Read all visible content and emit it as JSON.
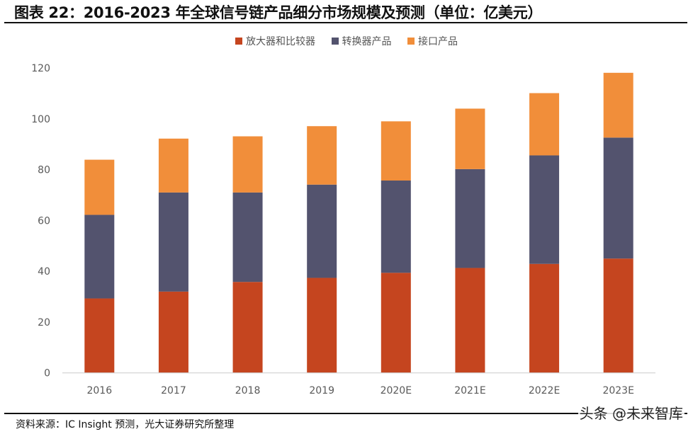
{
  "header": {
    "title": "图表 22：2016-2023 年全球信号链产品细分市场规模及预测（单位：亿美元）"
  },
  "footer": {
    "source": "资料来源：IC Insight 预测，光大证券研究所整理",
    "watermark": "头条 @未来智库"
  },
  "chart_data": {
    "type": "bar",
    "stacked": true,
    "title": "2016-2023 年全球信号链产品细分市场规模及预测（单位：亿美元）",
    "xlabel": "",
    "ylabel": "",
    "categories": [
      "2016",
      "2017",
      "2018",
      "2019",
      "2020E",
      "2021E",
      "2022E",
      "2023E"
    ],
    "ylim": [
      0,
      120
    ],
    "yticks": [
      0,
      20,
      40,
      60,
      80,
      100,
      120
    ],
    "ytick_labels": [
      "0",
      "20",
      "40",
      "60",
      "80",
      "100",
      "120"
    ],
    "grid": false,
    "legend_position": "top-center",
    "series": [
      {
        "name": "放大器和比较器",
        "color": "#c5451f",
        "values": [
          29.3,
          32.0,
          35.8,
          37.4,
          39.4,
          41.3,
          42.9,
          45.0
        ]
      },
      {
        "name": "转换器产品",
        "color": "#53536e",
        "values": [
          32.9,
          39.0,
          35.2,
          36.7,
          36.3,
          38.9,
          42.7,
          47.6
        ]
      },
      {
        "name": "接口产品",
        "color": "#f18e3a",
        "values": [
          21.7,
          21.2,
          22.1,
          23.0,
          23.3,
          23.8,
          24.5,
          25.5
        ]
      }
    ]
  }
}
